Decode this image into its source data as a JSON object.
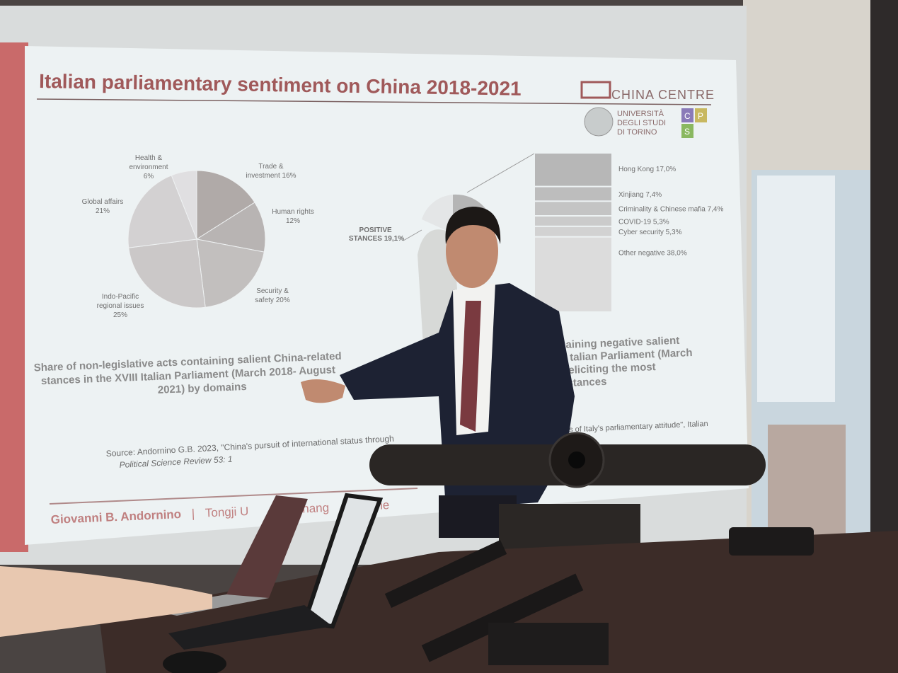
{
  "slide": {
    "title": "Italian parliamentary sentiment on China 2018-2021",
    "logo_text": "CHINA CENTRE",
    "university": [
      "UNIVERSITÀ",
      "DEGLI STUDI",
      "DI TORINO"
    ],
    "cps_letters": [
      "C",
      "P",
      "S"
    ],
    "left_caption": [
      "Share of non-legislative acts containing salient China-related",
      "stances in the XVIII Italian Parliament (March 2018- August",
      "2021) by domains"
    ],
    "right_caption_fragments": [
      "aining negative salient",
      "talian Parliament (March",
      "s eliciting the most",
      "stances"
    ],
    "source_line1": "Source: Andornino G.B. 2023, \"China's pursuit of international status through",
    "source_line2": "Political Science Review 53: 1",
    "source_right": "analysis of Italy's parliamentary attitude\", Italian",
    "footer_author": "Giovanni B. Andornino",
    "footer_sep": "|",
    "footer_venue": "Tongji U",
    "footer_city": "Shang",
    "footer_date": "12 June",
    "accent_color": "#a0595a"
  },
  "chart_data": [
    {
      "type": "pie",
      "categories": [
        "Trade & investment",
        "Human rights",
        "Security & safety",
        "Indo-Pacific regional issues",
        "Global affairs",
        "Health & environment"
      ],
      "values": [
        16,
        12,
        20,
        25,
        21,
        6
      ],
      "labels": [
        [
          "Trade &",
          "investment 16%"
        ],
        [
          "Human rights",
          "12%"
        ],
        [
          "Security &",
          "safety 20%"
        ],
        [
          "Indo-Pacific",
          "regional issues",
          "25%"
        ],
        [
          "Global affairs",
          "21%"
        ],
        [
          "Health &",
          "environment",
          "6%"
        ]
      ]
    },
    {
      "type": "bar",
      "stacked": true,
      "categories": [
        "Hong Kong",
        "Xinjiang",
        "Criminality & Chinese mafia",
        "COVID-19",
        "Cyber security",
        "Other negative"
      ],
      "values": [
        17.0,
        7.4,
        7.4,
        5.3,
        5.3,
        38.0
      ],
      "labels": [
        "Hong Kong  17,0%",
        "Xinjiang  7,4%",
        "Criminality & Chinese mafia 7,4%",
        "COVID-19 5,3%",
        "Cyber security 5,3%",
        "Other negative 38,0%"
      ],
      "pie_label": [
        "POSITIVE",
        "STANCES 19,1%"
      ]
    }
  ]
}
